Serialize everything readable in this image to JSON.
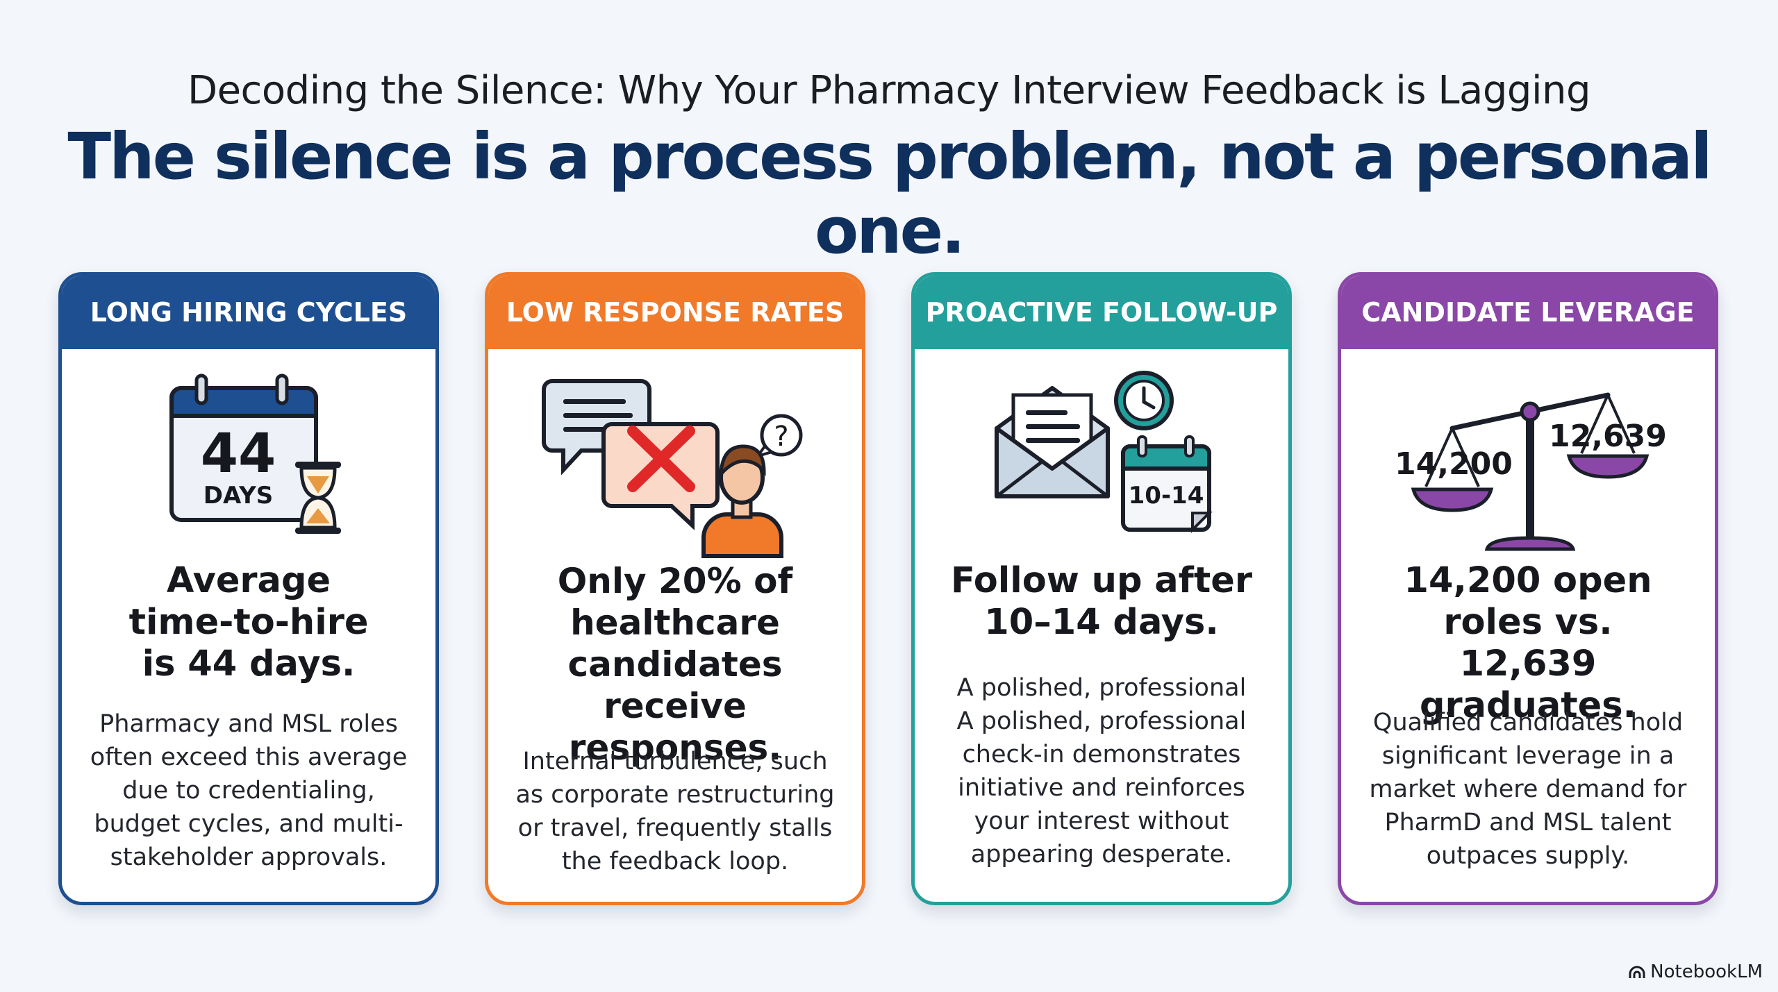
{
  "header": {
    "subtitle": "Decoding the Silence: Why Your Pharmacy Interview Feedback is Lagging",
    "headline": "The silence is a process problem, not a personal one."
  },
  "cards": [
    {
      "header": "LONG HIRING CYCLES",
      "icon": "calendar-hourglass-icon",
      "icon_text": [
        "44",
        "DAYS"
      ],
      "title": "Average time-to-hire is 44 days.",
      "body": "Pharmacy and MSL roles often exceed this average due to credentialing, budget cycles, and multi-stakeholder approvals.",
      "color": "#1d4f91"
    },
    {
      "header": "LOW RESPONSE RATES",
      "icon": "chat-no-response-icon",
      "icon_text": [
        "?"
      ],
      "title": "Only 20% of healthcare candidates receive responses.",
      "body": "Internal turbulence, such as corporate restructuring or travel, frequently stalls the feedback loop.",
      "color": "#f07a2a"
    },
    {
      "header": "PROACTIVE FOLLOW-UP",
      "icon": "envelope-clock-calendar-icon",
      "icon_text": [
        "10-14"
      ],
      "title": "Follow up after 10–14 days.",
      "body": "A polished, professional A polished, professional check-in demonstrates initiative and reinforces your interest without appearing desperate.",
      "color": "#23a09b"
    },
    {
      "header": "CANDIDATE LEVERAGE",
      "icon": "balance-scale-icon",
      "icon_text": [
        "14,200",
        "12,639"
      ],
      "title": "14,200 open roles vs. 12,639 graduates.",
      "body": "Qualified candidates hold significant leverage in a market where demand for PharmD and MSL talent outpaces supply.",
      "color": "#8b47a8"
    }
  ],
  "footer": {
    "brand": "NotebookLM",
    "brand_icon": "notebooklm-logo-icon"
  }
}
